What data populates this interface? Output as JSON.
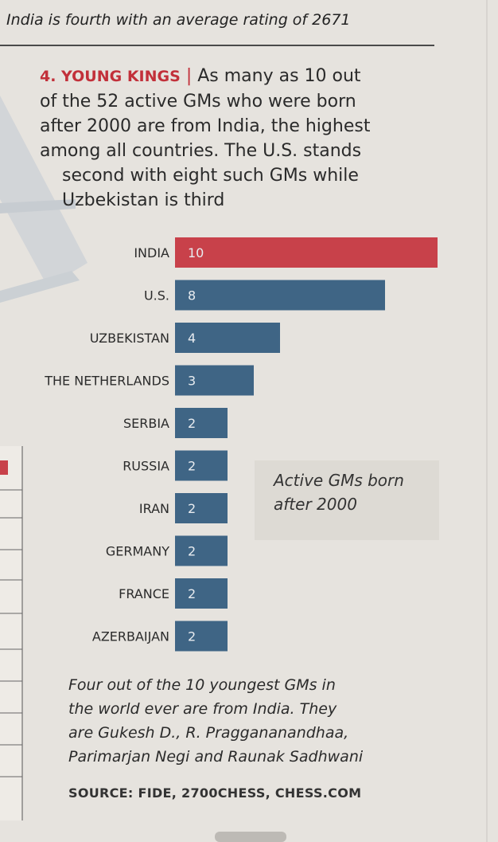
{
  "caption": "India is fourth with an average rating of 2671",
  "headline": {
    "kicker": "4. YOUNG KINGS",
    "separator": "|",
    "lines": [
      "As many as 10 out",
      "of the 52 active GMs who were born",
      "after 2000 are from India, the highest",
      "among all countries. The U.S. stands",
      "second with eight such GMs while",
      "Uzbekistan is third"
    ]
  },
  "chart_data": {
    "type": "bar",
    "orientation": "horizontal",
    "categories": [
      "INDIA",
      "U.S.",
      "UZBEKISTAN",
      "THE NETHERLANDS",
      "SERBIA",
      "RUSSIA",
      "IRAN",
      "GERMANY",
      "FRANCE",
      "AZERBAIJAN"
    ],
    "values": [
      10,
      8,
      4,
      3,
      2,
      2,
      2,
      2,
      2,
      2
    ],
    "value_labels": [
      "10",
      "8",
      "4",
      "3",
      "2",
      "2",
      "2",
      "2",
      "2",
      "2"
    ],
    "xlim": [
      0,
      10
    ],
    "grid": false,
    "legend_note": [
      "Active GMs born",
      "after 2000"
    ],
    "colors": {
      "highlight": "#c8414a",
      "default": "#3f6585"
    }
  },
  "footnote": {
    "lines": [
      "Four out of the 10 youngest GMs in",
      "the world ever are from India. They",
      "are Gukesh D., R. Praggananandhaa,",
      "Parimarjan Negi and Raunak Sadhwani"
    ]
  },
  "source": "SOURCE: FIDE, 2700CHESS, CHESS.COM"
}
